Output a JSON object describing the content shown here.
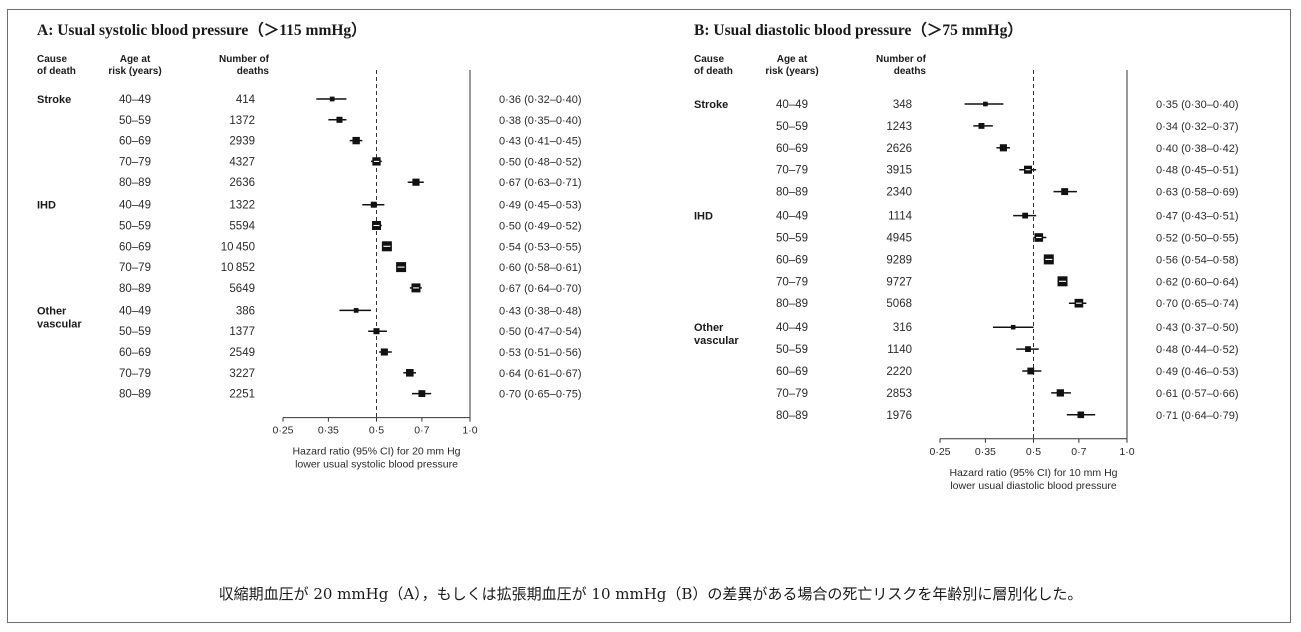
{
  "panels": [
    {
      "title": "A: Usual systolic blood pressure（＞115 mmHg）",
      "header": {
        "cause": [
          "Cause",
          "of death"
        ],
        "age": [
          "Age at",
          "risk (years)"
        ],
        "deaths": [
          "Number of",
          "deaths"
        ]
      },
      "groups": [
        {
          "cause": [
            "Stroke"
          ],
          "rows": [
            {
              "age": "40–49",
              "deaths": "414",
              "label": "0·36 (0·32–0·40)"
            },
            {
              "age": "50–59",
              "deaths": "1372",
              "label": "0·38 (0·35–0·40)"
            },
            {
              "age": "60–69",
              "deaths": "2939",
              "label": "0·43 (0·41–0·45)"
            },
            {
              "age": "70–79",
              "deaths": "4327",
              "label": "0·50 (0·48–0·52)"
            },
            {
              "age": "80–89",
              "deaths": "2636",
              "label": "0·67 (0·63–0·71)"
            }
          ]
        },
        {
          "cause": [
            "IHD"
          ],
          "rows": [
            {
              "age": "40–49",
              "deaths": "1322",
              "label": "0·49 (0·45–0·53)"
            },
            {
              "age": "50–59",
              "deaths": "5594",
              "label": "0·50 (0·49–0·52)"
            },
            {
              "age": "60–69",
              "deaths": "10 450",
              "label": "0·54 (0·53–0·55)"
            },
            {
              "age": "70–79",
              "deaths": "10 852",
              "label": "0·60 (0·58–0·61)"
            },
            {
              "age": "80–89",
              "deaths": "5649",
              "label": "0·67 (0·64–0·70)"
            }
          ]
        },
        {
          "cause": [
            "Other",
            "vascular"
          ],
          "rows": [
            {
              "age": "40–49",
              "deaths": "386",
              "label": "0·43 (0·38–0·48)"
            },
            {
              "age": "50–59",
              "deaths": "1377",
              "label": "0·50 (0·47–0·54)"
            },
            {
              "age": "60–69",
              "deaths": "2549",
              "label": "0·53 (0·51–0·56)"
            },
            {
              "age": "70–79",
              "deaths": "3227",
              "label": "0·64 (0·61–0·67)"
            },
            {
              "age": "80–89",
              "deaths": "2251",
              "label": "0·70 (0·65–0·75)"
            }
          ]
        }
      ],
      "ticks": [
        "0·25",
        "0·35",
        "0·5",
        "0·7",
        "1·0"
      ],
      "xlabel": [
        "Hazard ratio (95% CI) for 20 mm Hg",
        "lower usual systolic blood pressure"
      ]
    },
    {
      "title": "B: Usual diastolic blood pressure（＞75 mmHg）",
      "header": {
        "cause": [
          "Cause",
          "of death"
        ],
        "age": [
          "Age at",
          "risk (years)"
        ],
        "deaths": [
          "Number of",
          "deaths"
        ]
      },
      "groups": [
        {
          "cause": [
            "Stroke"
          ],
          "rows": [
            {
              "age": "40–49",
              "deaths": "348",
              "label": "0·35 (0·30–0·40)"
            },
            {
              "age": "50–59",
              "deaths": "1243",
              "label": "0·34 (0·32–0·37)"
            },
            {
              "age": "60–69",
              "deaths": "2626",
              "label": "0·40 (0·38–0·42)"
            },
            {
              "age": "70–79",
              "deaths": "3915",
              "label": "0·48 (0·45–0·51)"
            },
            {
              "age": "80–89",
              "deaths": "2340",
              "label": "0·63 (0·58–0·69)"
            }
          ]
        },
        {
          "cause": [
            "IHD"
          ],
          "rows": [
            {
              "age": "40–49",
              "deaths": "1114",
              "label": "0·47 (0·43–0·51)"
            },
            {
              "age": "50–59",
              "deaths": "4945",
              "label": "0·52 (0·50–0·55)"
            },
            {
              "age": "60–69",
              "deaths": "9289",
              "label": "0·56 (0·54–0·58)"
            },
            {
              "age": "70–79",
              "deaths": "9727",
              "label": "0·62 (0·60–0·64)"
            },
            {
              "age": "80–89",
              "deaths": "5068",
              "label": "0·70 (0·65–0·74)"
            }
          ]
        },
        {
          "cause": [
            "Other",
            "vascular"
          ],
          "rows": [
            {
              "age": "40–49",
              "deaths": "316",
              "label": "0·43 (0·37–0·50)"
            },
            {
              "age": "50–59",
              "deaths": "1140",
              "label": "0·48 (0·44–0·52)"
            },
            {
              "age": "60–69",
              "deaths": "2220",
              "label": "0·49 (0·46–0·53)"
            },
            {
              "age": "70–79",
              "deaths": "2853",
              "label": "0·61 (0·57–0·66)"
            },
            {
              "age": "80–89",
              "deaths": "1976",
              "label": "0·71 (0·64–0·79)"
            }
          ]
        }
      ],
      "ticks": [
        "0·25",
        "0·35",
        "0·5",
        "0·7",
        "1·0"
      ],
      "xlabel": [
        "Hazard ratio (95% CI) for 10 mm Hg",
        "lower usual diastolic blood pressure"
      ]
    }
  ],
  "caption": "収縮期血圧が 20 mmHg（A），もしくは拡張期血圧が 10 mmHg（B）の差異がある場合の死亡リスクを年齢別に層別化した。",
  "chart_data": [
    {
      "type": "forest",
      "x_scale": "log",
      "xlim": [
        0.25,
        1.0
      ],
      "reference_line": 0.5,
      "no_effect_line": 1.0,
      "series": [
        {
          "group": "Stroke",
          "age": [
            "40–49",
            "50–59",
            "60–69",
            "70–79",
            "80–89"
          ],
          "hr": [
            0.36,
            0.38,
            0.43,
            0.5,
            0.67
          ],
          "lo": [
            0.32,
            0.35,
            0.41,
            0.48,
            0.63
          ],
          "hi": [
            0.4,
            0.4,
            0.45,
            0.52,
            0.71
          ]
        },
        {
          "group": "IHD",
          "age": [
            "40–49",
            "50–59",
            "60–69",
            "70–79",
            "80–89"
          ],
          "hr": [
            0.49,
            0.5,
            0.54,
            0.6,
            0.67
          ],
          "lo": [
            0.45,
            0.49,
            0.53,
            0.58,
            0.64
          ],
          "hi": [
            0.53,
            0.52,
            0.55,
            0.61,
            0.7
          ]
        },
        {
          "group": "Other vascular",
          "age": [
            "40–49",
            "50–59",
            "60–69",
            "70–79",
            "80–89"
          ],
          "hr": [
            0.43,
            0.5,
            0.53,
            0.64,
            0.7
          ],
          "lo": [
            0.38,
            0.47,
            0.51,
            0.61,
            0.65
          ],
          "hi": [
            0.48,
            0.54,
            0.56,
            0.67,
            0.75
          ]
        }
      ]
    },
    {
      "type": "forest",
      "x_scale": "log",
      "xlim": [
        0.25,
        1.0
      ],
      "reference_line": 0.5,
      "no_effect_line": 1.0,
      "series": [
        {
          "group": "Stroke",
          "age": [
            "40–49",
            "50–59",
            "60–69",
            "70–79",
            "80–89"
          ],
          "hr": [
            0.35,
            0.34,
            0.4,
            0.48,
            0.63
          ],
          "lo": [
            0.3,
            0.32,
            0.38,
            0.45,
            0.58
          ],
          "hi": [
            0.4,
            0.37,
            0.42,
            0.51,
            0.69
          ]
        },
        {
          "group": "IHD",
          "age": [
            "40–49",
            "50–59",
            "60–69",
            "70–79",
            "80–89"
          ],
          "hr": [
            0.47,
            0.52,
            0.56,
            0.62,
            0.7
          ],
          "lo": [
            0.43,
            0.5,
            0.54,
            0.6,
            0.65
          ],
          "hi": [
            0.51,
            0.55,
            0.58,
            0.64,
            0.74
          ]
        },
        {
          "group": "Other vascular",
          "age": [
            "40–49",
            "50–59",
            "60–69",
            "70–79",
            "80–89"
          ],
          "hr": [
            0.43,
            0.48,
            0.49,
            0.61,
            0.71
          ],
          "lo": [
            0.37,
            0.44,
            0.46,
            0.57,
            0.64
          ],
          "hi": [
            0.5,
            0.52,
            0.53,
            0.66,
            0.79
          ]
        }
      ]
    }
  ]
}
